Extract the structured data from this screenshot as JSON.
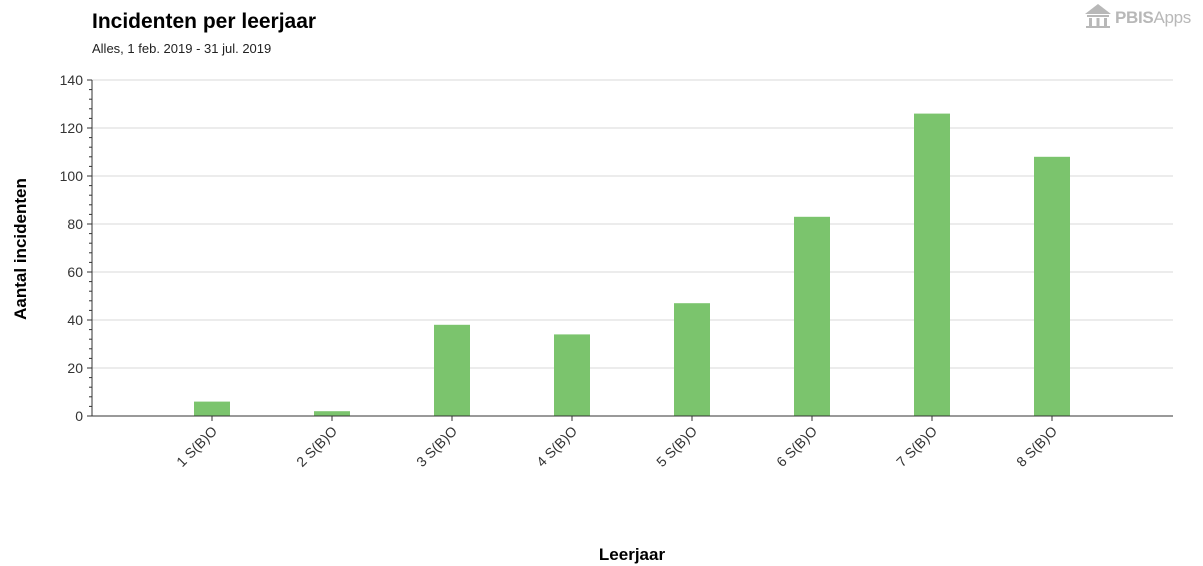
{
  "header": {
    "title": "Incidenten per leerjaar",
    "subtitle": "Alles, 1 feb. 2019 - 31 jul. 2019"
  },
  "logo": {
    "icon": "pbis-building-icon",
    "text_bold": "PBIS",
    "text_light": "Apps",
    "color": "#b8b8b8"
  },
  "chart_data": {
    "type": "bar",
    "title": "Incidenten per leerjaar",
    "subtitle": "Alles, 1 feb. 2019 - 31 jul. 2019",
    "xlabel": "Leerjaar",
    "ylabel": "Aantal incidenten",
    "categories": [
      "1 S(B)O",
      "2 S(B)O",
      "3 S(B)O",
      "4 S(B)O",
      "5 S(B)O",
      "6 S(B)O",
      "7 S(B)O",
      "8 S(B)O"
    ],
    "values": [
      6,
      2,
      38,
      34,
      47,
      83,
      126,
      108
    ],
    "ylim": [
      0,
      140
    ],
    "yticks": [
      0,
      20,
      40,
      60,
      80,
      100,
      120,
      140
    ],
    "grid": true,
    "bar_color": "#7bc46d"
  }
}
